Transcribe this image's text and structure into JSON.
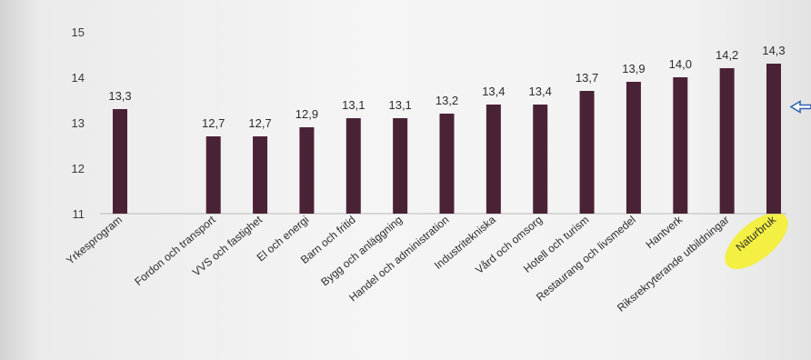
{
  "chart_data": {
    "type": "bar",
    "categories": [
      "Yrkesprogram",
      "Fordon och transport",
      "VVS och fastighet",
      "El och energi",
      "Barn och fritid",
      "Bygg och anläggning",
      "Handel och administration",
      "Industritekniska",
      "Vård och omsorg",
      "Hotell och turism",
      "Restaurang och livsmedel",
      "Hantverk",
      "Riksrekryterande utbildningar",
      "Naturbruk"
    ],
    "bar_slots": [
      0,
      2,
      3,
      4,
      5,
      6,
      7,
      8,
      9,
      10,
      11,
      12,
      13,
      14
    ],
    "slot_count": 15,
    "values": [
      13.3,
      12.7,
      12.7,
      12.9,
      13.1,
      13.1,
      13.2,
      13.4,
      13.4,
      13.7,
      13.9,
      14.0,
      14.2,
      14.3
    ],
    "value_labels": [
      "13,3",
      "12,7",
      "12,7",
      "12,9",
      "13,1",
      "13,1",
      "13,2",
      "13,4",
      "13,4",
      "13,7",
      "13,9",
      "14,0",
      "14,2",
      "14,3"
    ],
    "yticks": [
      11,
      12,
      13,
      14,
      15
    ],
    "ylim": [
      11,
      15
    ],
    "title": "",
    "xlabel": "",
    "ylabel": "",
    "grid": false,
    "legend": "none",
    "highlighted_category": "Naturbruk",
    "reference_value": 13.35,
    "colors": {
      "bar": "#4a2236",
      "highlight": "#f3ef3a",
      "marker": "#2f63b0"
    }
  }
}
